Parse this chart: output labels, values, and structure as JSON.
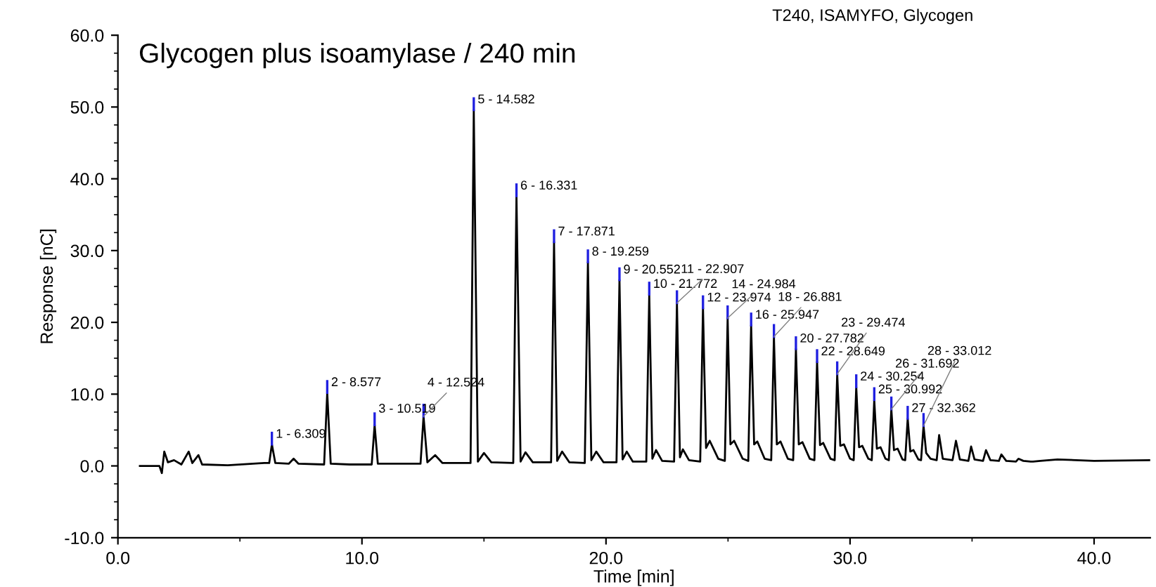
{
  "chart_data": {
    "type": "line",
    "title": "Glycogen plus isoamylase / 240 min",
    "subtitle": "T240, ISAMYFO, Glycogen",
    "xlabel": "Time [min]",
    "ylabel": "Response [nC]",
    "series": [
      {
        "color": "#000000",
        "x": [
          0.9,
          1.7,
          1.8,
          1.9,
          2.05,
          2.3,
          2.6,
          2.9,
          3.05,
          3.3,
          3.45,
          4.5,
          6.0,
          6.2,
          6.309,
          6.45,
          7.0,
          7.2,
          7.4,
          8.45,
          8.577,
          8.72,
          9.5,
          10.4,
          10.519,
          10.65,
          11.5,
          12.4,
          12.524,
          12.68,
          13.0,
          13.3,
          14.45,
          14.582,
          14.75,
          15.0,
          15.3,
          16.2,
          16.331,
          16.5,
          16.7,
          17.0,
          17.75,
          17.871,
          18.0,
          18.2,
          18.5,
          19.13,
          19.259,
          19.4,
          19.6,
          19.9,
          20.43,
          20.552,
          20.68,
          20.85,
          21.1,
          21.65,
          21.772,
          21.9,
          22.05,
          22.3,
          22.79,
          22.907,
          23.03,
          23.15,
          23.4,
          23.86,
          23.974,
          24.1,
          24.25,
          24.6,
          24.87,
          24.984,
          25.1,
          25.25,
          25.6,
          25.83,
          25.947,
          26.07,
          26.2,
          26.5,
          26.77,
          26.881,
          27.0,
          27.15,
          27.45,
          27.67,
          27.782,
          27.9,
          28.05,
          28.35,
          28.54,
          28.649,
          28.77,
          28.9,
          29.2,
          29.37,
          29.474,
          29.6,
          29.75,
          30.0,
          30.15,
          30.254,
          30.37,
          30.5,
          30.75,
          30.89,
          30.992,
          31.1,
          31.25,
          31.45,
          31.59,
          31.692,
          31.8,
          31.95,
          32.15,
          32.26,
          32.362,
          32.47,
          32.6,
          32.8,
          32.91,
          33.012,
          33.12,
          33.3,
          33.55,
          33.65,
          33.8,
          34.2,
          34.34,
          34.5,
          34.85,
          34.96,
          35.1,
          35.45,
          35.57,
          35.75,
          36.1,
          36.2,
          36.4,
          36.8,
          36.9,
          37.1,
          37.4,
          37.5,
          37.8,
          38.5,
          40.0,
          42.3
        ],
        "values": [
          0.0,
          0.0,
          -1.0,
          2.0,
          0.5,
          0.8,
          0.2,
          2.0,
          0.4,
          1.5,
          0.2,
          0.1,
          0.4,
          0.4,
          3.0,
          0.4,
          0.3,
          1.0,
          0.3,
          0.2,
          10.2,
          0.3,
          0.2,
          0.2,
          5.7,
          0.3,
          0.3,
          0.3,
          6.9,
          0.5,
          1.5,
          0.4,
          0.4,
          49.6,
          0.6,
          1.8,
          0.5,
          0.4,
          37.6,
          0.6,
          1.9,
          0.5,
          0.5,
          31.2,
          0.7,
          2.0,
          0.5,
          0.4,
          28.4,
          0.8,
          2.0,
          0.5,
          0.5,
          25.9,
          0.9,
          2.0,
          0.6,
          0.6,
          23.9,
          1.0,
          2.2,
          0.7,
          0.6,
          22.7,
          1.2,
          2.3,
          0.8,
          0.6,
          22.0,
          2.5,
          3.5,
          1.0,
          0.7,
          20.6,
          3.0,
          3.5,
          1.0,
          0.7,
          19.6,
          3.0,
          3.4,
          1.0,
          0.8,
          18.0,
          3.0,
          3.4,
          1.0,
          0.8,
          16.3,
          3.0,
          3.3,
          1.0,
          0.8,
          14.5,
          2.9,
          3.2,
          1.0,
          0.8,
          12.8,
          2.8,
          3.0,
          1.0,
          0.8,
          11.0,
          2.6,
          2.8,
          1.0,
          0.8,
          9.2,
          2.4,
          2.6,
          1.0,
          0.8,
          7.9,
          2.2,
          2.4,
          0.9,
          0.8,
          6.6,
          2.0,
          2.2,
          0.9,
          0.8,
          5.6,
          1.8,
          1.0,
          0.8,
          4.3,
          1.0,
          0.8,
          3.5,
          0.9,
          0.7,
          2.7,
          0.9,
          0.7,
          2.2,
          0.8,
          0.7,
          1.6,
          0.7,
          0.6,
          1.0,
          0.7,
          0.6,
          0.6,
          0.7,
          0.9,
          0.7,
          0.8
        ]
      }
    ],
    "xlim": [
      0,
      42.3
    ],
    "ylim": [
      -10,
      60
    ],
    "xticks": [
      {
        "value": 0,
        "label": "0.0"
      },
      {
        "value": 10,
        "label": "10.0"
      },
      {
        "value": 20,
        "label": "20.0"
      },
      {
        "value": 30,
        "label": "30.0"
      },
      {
        "value": 40,
        "label": "40.0"
      }
    ],
    "yticks": [
      {
        "value": -10,
        "label": "-10.0"
      },
      {
        "value": 0,
        "label": "0.0"
      },
      {
        "value": 10,
        "label": "10.0"
      },
      {
        "value": 20,
        "label": "20.0"
      },
      {
        "value": 30,
        "label": "30.0"
      },
      {
        "value": 40,
        "label": "40.0"
      },
      {
        "value": 50,
        "label": "50.0"
      },
      {
        "value": 60,
        "label": "60.0"
      }
    ],
    "grid": false,
    "legend": false,
    "marker": "none",
    "line_style": "solid",
    "annotations": [
      {
        "text": "1 - 6.309",
        "x": 6.309,
        "y": 3.0
      },
      {
        "text": "2 - 8.577",
        "x": 8.577,
        "y": 10.2
      },
      {
        "text": "3 - 10.519",
        "x": 10.519,
        "y": 5.7
      },
      {
        "text": "4 - 12.524",
        "x": 12.524,
        "y": 6.9
      },
      {
        "text": "5 - 14.582",
        "x": 14.582,
        "y": 49.6
      },
      {
        "text": "6 - 16.331",
        "x": 16.331,
        "y": 37.6
      },
      {
        "text": "7 - 17.871",
        "x": 17.871,
        "y": 31.2
      },
      {
        "text": "8 - 19.259",
        "x": 19.259,
        "y": 28.4
      },
      {
        "text": "9 - 20.552",
        "x": 20.552,
        "y": 25.9
      },
      {
        "text": "10 - 21.772",
        "x": 21.772,
        "y": 23.9
      },
      {
        "text": "11 - 22.907",
        "x": 22.907,
        "y": 22.7
      },
      {
        "text": "12 - 23.974",
        "x": 23.974,
        "y": 22.0
      },
      {
        "text": "14 - 24.984",
        "x": 24.984,
        "y": 20.6
      },
      {
        "text": "16 - 25.947",
        "x": 25.947,
        "y": 19.6
      },
      {
        "text": "18 - 26.881",
        "x": 26.881,
        "y": 18.0
      },
      {
        "text": "20 - 27.782",
        "x": 27.782,
        "y": 16.3
      },
      {
        "text": "22 - 28.649",
        "x": 28.649,
        "y": 14.5
      },
      {
        "text": "23 - 29.474",
        "x": 29.474,
        "y": 12.8
      },
      {
        "text": "24 - 30.254",
        "x": 30.254,
        "y": 11.0
      },
      {
        "text": "25 - 30.992",
        "x": 30.992,
        "y": 9.2
      },
      {
        "text": "26 - 31.692",
        "x": 31.692,
        "y": 7.9
      },
      {
        "text": "27 - 32.362",
        "x": 32.362,
        "y": 6.6
      },
      {
        "text": "28 - 33.012",
        "x": 33.012,
        "y": 5.6
      }
    ]
  }
}
